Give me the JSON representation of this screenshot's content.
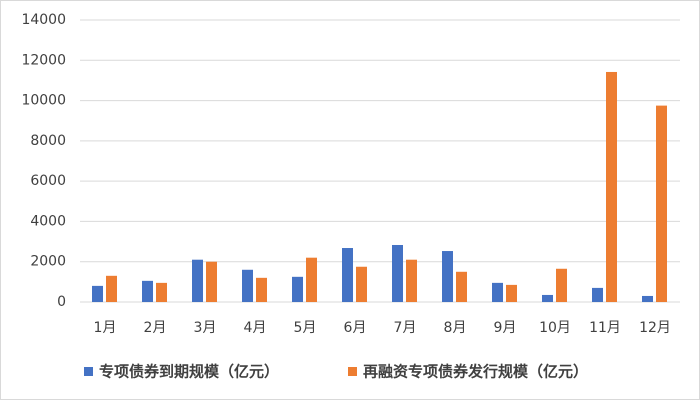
{
  "chart_data": {
    "type": "bar",
    "categories": [
      "1月",
      "2月",
      "3月",
      "4月",
      "5月",
      "6月",
      "7月",
      "8月",
      "9月",
      "10月",
      "11月",
      "12月"
    ],
    "series": [
      {
        "name": "专项债券到期规模（亿元）",
        "color": "#4472c4",
        "values": [
          800,
          1050,
          2100,
          1600,
          1250,
          2680,
          2830,
          2530,
          950,
          350,
          700,
          300
        ]
      },
      {
        "name": "再融资专项债券发行规模（亿元）",
        "color": "#ed7d31",
        "values": [
          1300,
          950,
          2000,
          1200,
          2200,
          1750,
          2100,
          1500,
          850,
          1650,
          11420,
          9750
        ]
      }
    ],
    "ylim": [
      0,
      14000
    ],
    "yticks": [
      0,
      2000,
      4000,
      6000,
      8000,
      10000,
      12000,
      14000
    ],
    "grid": true
  }
}
